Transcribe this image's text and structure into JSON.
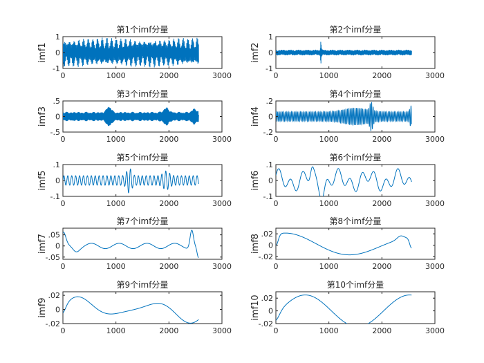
{
  "chart_data": [
    {
      "type": "line",
      "title": "第1个imf分量",
      "ylabel": "imf1",
      "xlim": [
        0,
        3000
      ],
      "ylim": [
        -1,
        1
      ],
      "xticks": [
        0,
        1000,
        2000,
        3000
      ],
      "yticks": [
        -1,
        0,
        1
      ],
      "x_range": [
        0,
        2560
      ],
      "description": "dense high-frequency oscillation, amplitude near ±1"
    },
    {
      "type": "line",
      "title": "第2个imf分量",
      "ylabel": "imf2",
      "xlim": [
        0,
        3000
      ],
      "ylim": [
        -1,
        1
      ],
      "xticks": [
        0,
        1000,
        2000,
        3000
      ],
      "yticks": [
        -1,
        0,
        1
      ],
      "x_range": [
        0,
        2560
      ],
      "description": "high-frequency oscillation, amplitude ~±0.2, spike near 850"
    },
    {
      "type": "line",
      "title": "第3个imf分量",
      "ylabel": "imf3",
      "xlim": [
        0,
        3000
      ],
      "ylim": [
        -0.5,
        0.5
      ],
      "xticks": [
        0,
        1000,
        2000,
        3000
      ],
      "yticks": [
        -0.5,
        0,
        0.5
      ],
      "x_range": [
        0,
        2560
      ],
      "description": "oscillation amplitude ~±0.3 with bursts"
    },
    {
      "type": "line",
      "title": "第4个imf分量",
      "ylabel": "imf4",
      "xlim": [
        0,
        3000
      ],
      "ylim": [
        -0.2,
        0.2
      ],
      "xticks": [
        0,
        1000,
        2000,
        3000
      ],
      "yticks": [
        -0.2,
        0,
        0.2
      ],
      "x_range": [
        0,
        2560
      ],
      "description": "oscillation amplitude ~±0.15"
    },
    {
      "type": "line",
      "title": "第5个imf分量",
      "ylabel": "imf5",
      "xlim": [
        0,
        3000
      ],
      "ylim": [
        -0.1,
        0.1
      ],
      "xticks": [
        0,
        1000,
        2000,
        3000
      ],
      "yticks": [
        -0.1,
        0,
        0.1
      ],
      "x_range": [
        0,
        2560
      ],
      "description": "oscillation amplitude ~±0.06"
    },
    {
      "type": "line",
      "title": "第6个imf分量",
      "ylabel": "imf6",
      "xlim": [
        0,
        3000
      ],
      "ylim": [
        -0.1,
        0.1
      ],
      "xticks": [
        0,
        1000,
        2000,
        3000
      ],
      "yticks": [
        -0.1,
        0,
        0.1
      ],
      "x_range": [
        0,
        2560
      ],
      "description": "slow oscillation amplitude ~±0.08"
    },
    {
      "type": "line",
      "title": "第7个imf分量",
      "ylabel": "imf7",
      "xlim": [
        0,
        3000
      ],
      "ylim": [
        -0.06,
        0.08
      ],
      "xticks": [
        0,
        1000,
        2000,
        3000
      ],
      "yticks": [
        -0.05,
        0,
        0.05
      ],
      "x_range": [
        0,
        2560
      ],
      "description": "low-frequency wave, peak ~0.08 near 2450"
    },
    {
      "type": "line",
      "title": "第8个imf分量",
      "ylabel": "imf8",
      "xlim": [
        0,
        3000
      ],
      "ylim": [
        -0.025,
        0.03
      ],
      "xticks": [
        0,
        1000,
        2000,
        3000
      ],
      "yticks": [
        -0.02,
        0,
        0.02
      ],
      "x_range": [
        0,
        2560
      ],
      "description": "low-frequency wave"
    },
    {
      "type": "line",
      "title": "第9个imf分量",
      "ylabel": "imf9",
      "xlim": [
        0,
        3000
      ],
      "ylim": [
        -0.02,
        0.025
      ],
      "xticks": [
        0,
        1000,
        2000,
        3000
      ],
      "yticks": [
        -0.02,
        0,
        0.02
      ],
      "x_range": [
        0,
        2560
      ],
      "description": "very low-frequency wave"
    },
    {
      "type": "line",
      "title": "第10个imf分量",
      "ylabel": "imf10",
      "xlim": [
        0,
        3000
      ],
      "ylim": [
        -0.02,
        0.03
      ],
      "xticks": [
        0,
        1000,
        2000,
        3000
      ],
      "yticks": [
        -0.02,
        0,
        0.02
      ],
      "x_range": [
        0,
        2560
      ],
      "description": "trend-like slow wave"
    }
  ],
  "colors": {
    "line": "#0072BD",
    "axes": "#262626",
    "background": "#ffffff"
  }
}
